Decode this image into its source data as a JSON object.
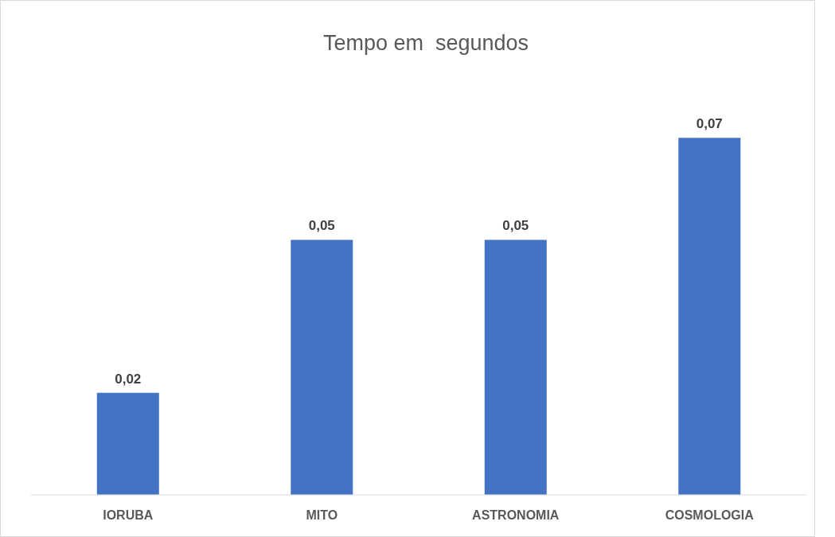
{
  "chart_data": {
    "type": "bar",
    "title": "Tempo em  segundos",
    "categories": [
      "IORUBA",
      "MITO",
      "ASTRONOMIA",
      "COSMOLOGIA"
    ],
    "values": [
      0.02,
      0.05,
      0.05,
      0.07
    ],
    "value_labels": [
      "0,02",
      "0,05",
      "0,05",
      "0,07"
    ],
    "color": "#4472c4",
    "grid": false,
    "legend": false
  }
}
